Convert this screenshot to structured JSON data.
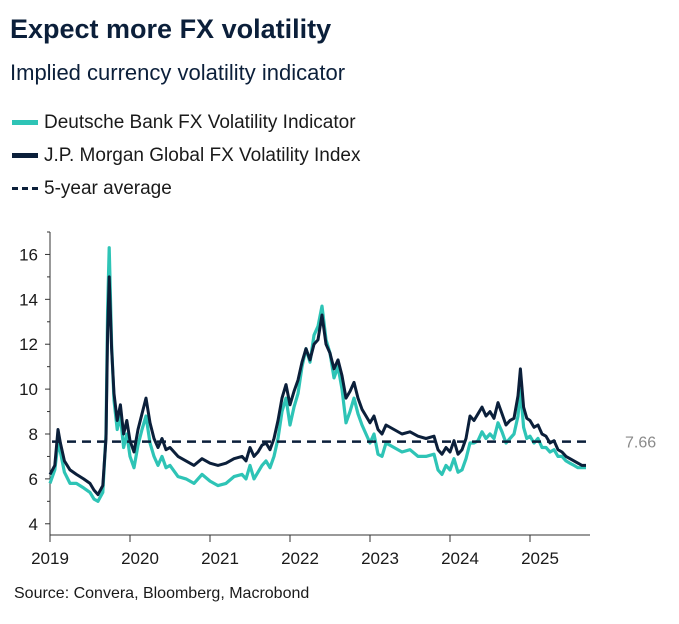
{
  "header": {
    "title": "Expect more FX volatility",
    "subtitle": "Implied currency volatility indicator"
  },
  "legend": [
    {
      "label": "Deutsche Bank FX Volatility Indicator",
      "color": "#2ec4b6",
      "style": "solid"
    },
    {
      "label": "J.P. Morgan Global FX Volatility Index",
      "color": "#0b1f3a",
      "style": "solid"
    },
    {
      "label": "5-year average",
      "color": "#0b1f3a",
      "style": "dashed"
    }
  ],
  "source": "Source: Convera, Bloomberg, Macrobond",
  "chart_data": {
    "type": "line",
    "x_ticks": [
      "2019",
      "2020",
      "2021",
      "2022",
      "2023",
      "2024",
      "2025"
    ],
    "y_ticks": [
      4,
      6,
      8,
      10,
      12,
      14,
      16
    ],
    "ylim": [
      3.5,
      17
    ],
    "xlim": [
      2019.0,
      2025.75
    ],
    "grid": false,
    "legend_position": "top-left",
    "reference_line": {
      "name": "5-year average",
      "value": 7.66,
      "label": "7.66"
    },
    "series": [
      {
        "name": "Deutsche Bank FX Volatility Indicator",
        "color": "#2ec4b6",
        "points": [
          [
            2019.0,
            5.8
          ],
          [
            2019.06,
            6.4
          ],
          [
            2019.1,
            7.6
          ],
          [
            2019.13,
            7.2
          ],
          [
            2019.18,
            6.3
          ],
          [
            2019.25,
            5.8
          ],
          [
            2019.33,
            5.8
          ],
          [
            2019.42,
            5.6
          ],
          [
            2019.5,
            5.4
          ],
          [
            2019.55,
            5.1
          ],
          [
            2019.6,
            5.0
          ],
          [
            2019.66,
            5.4
          ],
          [
            2019.7,
            8.0
          ],
          [
            2019.72,
            13.5
          ],
          [
            2019.74,
            16.3
          ],
          [
            2019.77,
            12.0
          ],
          [
            2019.8,
            9.5
          ],
          [
            2019.84,
            8.2
          ],
          [
            2019.88,
            8.8
          ],
          [
            2019.92,
            7.4
          ],
          [
            2019.96,
            8.0
          ],
          [
            2020.0,
            7.0
          ],
          [
            2020.05,
            6.5
          ],
          [
            2020.1,
            7.5
          ],
          [
            2020.15,
            8.2
          ],
          [
            2020.2,
            8.8
          ],
          [
            2020.25,
            7.6
          ],
          [
            2020.3,
            7.0
          ],
          [
            2020.35,
            6.6
          ],
          [
            2020.4,
            7.0
          ],
          [
            2020.45,
            6.5
          ],
          [
            2020.5,
            6.6
          ],
          [
            2020.6,
            6.1
          ],
          [
            2020.7,
            6.0
          ],
          [
            2020.8,
            5.8
          ],
          [
            2020.9,
            6.2
          ],
          [
            2021.0,
            5.9
          ],
          [
            2021.1,
            5.7
          ],
          [
            2021.2,
            5.8
          ],
          [
            2021.3,
            6.1
          ],
          [
            2021.4,
            6.2
          ],
          [
            2021.45,
            6.0
          ],
          [
            2021.5,
            6.6
          ],
          [
            2021.55,
            6.0
          ],
          [
            2021.6,
            6.3
          ],
          [
            2021.65,
            6.6
          ],
          [
            2021.7,
            6.8
          ],
          [
            2021.75,
            6.5
          ],
          [
            2021.8,
            7.0
          ],
          [
            2021.85,
            7.8
          ],
          [
            2021.9,
            9.0
          ],
          [
            2021.95,
            9.6
          ],
          [
            2022.0,
            8.4
          ],
          [
            2022.05,
            9.2
          ],
          [
            2022.1,
            9.8
          ],
          [
            2022.15,
            11.0
          ],
          [
            2022.2,
            11.8
          ],
          [
            2022.25,
            11.2
          ],
          [
            2022.3,
            12.4
          ],
          [
            2022.35,
            12.8
          ],
          [
            2022.4,
            13.7
          ],
          [
            2022.45,
            12.2
          ],
          [
            2022.5,
            11.6
          ],
          [
            2022.55,
            10.5
          ],
          [
            2022.6,
            11.0
          ],
          [
            2022.65,
            10.0
          ],
          [
            2022.7,
            8.5
          ],
          [
            2022.75,
            9.0
          ],
          [
            2022.8,
            9.6
          ],
          [
            2022.85,
            8.9
          ],
          [
            2022.9,
            8.4
          ],
          [
            2022.95,
            8.0
          ],
          [
            2023.0,
            7.6
          ],
          [
            2023.05,
            8.0
          ],
          [
            2023.1,
            7.1
          ],
          [
            2023.15,
            7.0
          ],
          [
            2023.2,
            7.6
          ],
          [
            2023.3,
            7.4
          ],
          [
            2023.4,
            7.2
          ],
          [
            2023.5,
            7.3
          ],
          [
            2023.6,
            7.0
          ],
          [
            2023.7,
            7.0
          ],
          [
            2023.8,
            7.1
          ],
          [
            2023.85,
            6.4
          ],
          [
            2023.9,
            6.2
          ],
          [
            2023.95,
            6.6
          ],
          [
            2024.0,
            6.4
          ],
          [
            2024.05,
            6.9
          ],
          [
            2024.1,
            6.3
          ],
          [
            2024.15,
            6.4
          ],
          [
            2024.2,
            6.9
          ],
          [
            2024.25,
            7.6
          ],
          [
            2024.3,
            7.6
          ],
          [
            2024.35,
            7.7
          ],
          [
            2024.4,
            8.1
          ],
          [
            2024.45,
            7.8
          ],
          [
            2024.5,
            8.0
          ],
          [
            2024.55,
            7.8
          ],
          [
            2024.6,
            8.5
          ],
          [
            2024.65,
            8.1
          ],
          [
            2024.7,
            7.6
          ],
          [
            2024.75,
            7.8
          ],
          [
            2024.8,
            8.0
          ],
          [
            2024.85,
            8.8
          ],
          [
            2024.88,
            10.0
          ],
          [
            2024.92,
            8.3
          ],
          [
            2024.96,
            7.8
          ],
          [
            2025.0,
            7.9
          ],
          [
            2025.05,
            7.6
          ],
          [
            2025.1,
            7.8
          ],
          [
            2025.15,
            7.4
          ],
          [
            2025.2,
            7.4
          ],
          [
            2025.25,
            7.2
          ],
          [
            2025.3,
            7.3
          ],
          [
            2025.35,
            7.0
          ],
          [
            2025.4,
            7.0
          ],
          [
            2025.45,
            6.8
          ],
          [
            2025.5,
            6.7
          ],
          [
            2025.55,
            6.6
          ],
          [
            2025.6,
            6.5
          ],
          [
            2025.65,
            6.5
          ],
          [
            2025.7,
            6.5
          ]
        ]
      },
      {
        "name": "J.P. Morgan Global FX Volatility Index",
        "color": "#0b1f3a",
        "points": [
          [
            2019.0,
            6.2
          ],
          [
            2019.06,
            6.6
          ],
          [
            2019.1,
            8.2
          ],
          [
            2019.13,
            7.6
          ],
          [
            2019.18,
            6.8
          ],
          [
            2019.25,
            6.4
          ],
          [
            2019.33,
            6.2
          ],
          [
            2019.42,
            6.0
          ],
          [
            2019.5,
            5.8
          ],
          [
            2019.55,
            5.5
          ],
          [
            2019.6,
            5.3
          ],
          [
            2019.66,
            5.7
          ],
          [
            2019.7,
            7.8
          ],
          [
            2019.72,
            12.5
          ],
          [
            2019.74,
            15.0
          ],
          [
            2019.77,
            11.8
          ],
          [
            2019.8,
            9.8
          ],
          [
            2019.84,
            8.6
          ],
          [
            2019.88,
            9.3
          ],
          [
            2019.92,
            8.0
          ],
          [
            2019.96,
            8.6
          ],
          [
            2020.0,
            7.7
          ],
          [
            2020.05,
            7.2
          ],
          [
            2020.1,
            8.2
          ],
          [
            2020.15,
            8.9
          ],
          [
            2020.2,
            9.6
          ],
          [
            2020.25,
            8.5
          ],
          [
            2020.3,
            7.8
          ],
          [
            2020.35,
            7.4
          ],
          [
            2020.4,
            7.8
          ],
          [
            2020.45,
            7.3
          ],
          [
            2020.5,
            7.4
          ],
          [
            2020.6,
            7.0
          ],
          [
            2020.7,
            6.8
          ],
          [
            2020.8,
            6.6
          ],
          [
            2020.9,
            6.9
          ],
          [
            2021.0,
            6.7
          ],
          [
            2021.1,
            6.6
          ],
          [
            2021.2,
            6.7
          ],
          [
            2021.3,
            6.9
          ],
          [
            2021.4,
            7.0
          ],
          [
            2021.45,
            6.8
          ],
          [
            2021.5,
            7.4
          ],
          [
            2021.55,
            7.0
          ],
          [
            2021.6,
            7.2
          ],
          [
            2021.65,
            7.5
          ],
          [
            2021.7,
            7.6
          ],
          [
            2021.75,
            7.3
          ],
          [
            2021.8,
            7.8
          ],
          [
            2021.85,
            8.6
          ],
          [
            2021.9,
            9.6
          ],
          [
            2021.95,
            10.2
          ],
          [
            2022.0,
            9.3
          ],
          [
            2022.05,
            9.9
          ],
          [
            2022.1,
            10.4
          ],
          [
            2022.15,
            11.2
          ],
          [
            2022.2,
            11.8
          ],
          [
            2022.25,
            11.3
          ],
          [
            2022.3,
            12.0
          ],
          [
            2022.35,
            12.2
          ],
          [
            2022.4,
            13.3
          ],
          [
            2022.45,
            12.0
          ],
          [
            2022.5,
            11.6
          ],
          [
            2022.55,
            10.9
          ],
          [
            2022.6,
            11.3
          ],
          [
            2022.65,
            10.6
          ],
          [
            2022.7,
            9.6
          ],
          [
            2022.75,
            9.9
          ],
          [
            2022.8,
            10.3
          ],
          [
            2022.85,
            9.6
          ],
          [
            2022.9,
            9.1
          ],
          [
            2022.95,
            8.8
          ],
          [
            2023.0,
            8.5
          ],
          [
            2023.05,
            8.8
          ],
          [
            2023.1,
            8.2
          ],
          [
            2023.15,
            8.0
          ],
          [
            2023.2,
            8.4
          ],
          [
            2023.3,
            8.2
          ],
          [
            2023.4,
            8.0
          ],
          [
            2023.5,
            8.1
          ],
          [
            2023.6,
            7.9
          ],
          [
            2023.7,
            7.8
          ],
          [
            2023.8,
            7.9
          ],
          [
            2023.85,
            7.3
          ],
          [
            2023.9,
            7.1
          ],
          [
            2023.95,
            7.4
          ],
          [
            2024.0,
            7.2
          ],
          [
            2024.05,
            7.7
          ],
          [
            2024.1,
            7.1
          ],
          [
            2024.15,
            7.3
          ],
          [
            2024.2,
            7.8
          ],
          [
            2024.25,
            8.8
          ],
          [
            2024.3,
            8.6
          ],
          [
            2024.35,
            8.9
          ],
          [
            2024.4,
            9.2
          ],
          [
            2024.45,
            8.8
          ],
          [
            2024.5,
            9.0
          ],
          [
            2024.55,
            8.7
          ],
          [
            2024.6,
            9.4
          ],
          [
            2024.65,
            8.9
          ],
          [
            2024.7,
            8.4
          ],
          [
            2024.75,
            8.6
          ],
          [
            2024.8,
            8.7
          ],
          [
            2024.85,
            9.7
          ],
          [
            2024.88,
            10.9
          ],
          [
            2024.92,
            9.2
          ],
          [
            2024.96,
            8.7
          ],
          [
            2025.0,
            8.6
          ],
          [
            2025.05,
            8.3
          ],
          [
            2025.1,
            8.4
          ],
          [
            2025.15,
            8.0
          ],
          [
            2025.2,
            7.9
          ],
          [
            2025.25,
            7.6
          ],
          [
            2025.3,
            7.7
          ],
          [
            2025.35,
            7.3
          ],
          [
            2025.4,
            7.2
          ],
          [
            2025.45,
            7.0
          ],
          [
            2025.5,
            6.9
          ],
          [
            2025.55,
            6.8
          ],
          [
            2025.6,
            6.7
          ],
          [
            2025.65,
            6.6
          ],
          [
            2025.7,
            6.6
          ]
        ]
      }
    ]
  }
}
